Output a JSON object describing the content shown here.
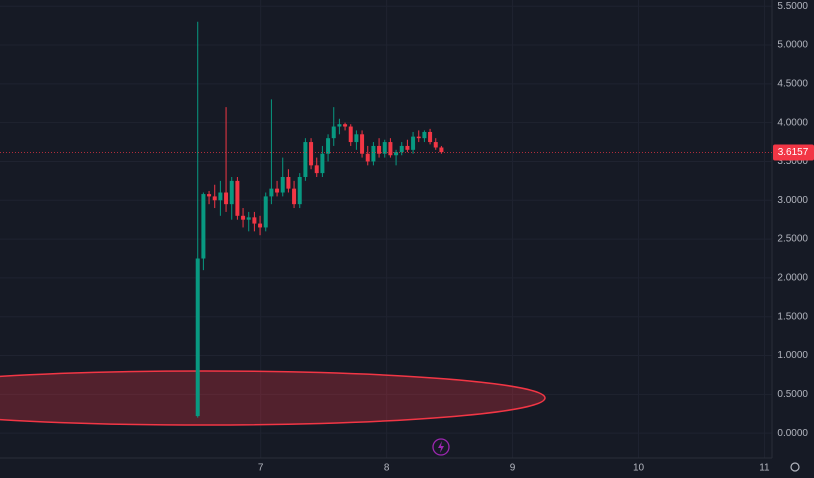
{
  "chart_data": {
    "type": "candlestick",
    "up_color": "#089981",
    "down_color": "#f23645",
    "grid": true,
    "xlim": [
      4.93,
      11.06
    ],
    "ylim": [
      -0.32,
      5.58
    ],
    "xticks": [
      7,
      8,
      9,
      10,
      11
    ],
    "yticks": [
      {
        "value": 0,
        "label": "0.0000"
      },
      {
        "value": 0.5,
        "label": "0.5000"
      },
      {
        "value": 1,
        "label": "1.0000"
      },
      {
        "value": 1.5,
        "label": "1.5000"
      },
      {
        "value": 2,
        "label": "2.0000"
      },
      {
        "value": 2.5,
        "label": "2.5000"
      },
      {
        "value": 3,
        "label": "3.0000"
      },
      {
        "value": 3.5,
        "label": "3.5000"
      },
      {
        "value": 4,
        "label": "4.0000"
      },
      {
        "value": 4.5,
        "label": "4.5000"
      },
      {
        "value": 5,
        "label": "5.0000"
      },
      {
        "value": 5.5,
        "label": "5.5000"
      }
    ],
    "last_price": 3.6157,
    "x": [
      6.5,
      6.545,
      6.59,
      6.635,
      6.68,
      6.725,
      6.77,
      6.815,
      6.86,
      6.905,
      6.95,
      6.995,
      7.04,
      7.085,
      7.13,
      7.175,
      7.22,
      7.265,
      7.31,
      7.355,
      7.4,
      7.445,
      7.49,
      7.535,
      7.58,
      7.625,
      7.67,
      7.715,
      7.76,
      7.805,
      7.85,
      7.895,
      7.94,
      7.985,
      8.03,
      8.075,
      8.12,
      8.165,
      8.21,
      8.255,
      8.3,
      8.345,
      8.39,
      8.435
    ],
    "open": [
      0.22,
      2.25,
      3.08,
      3.05,
      3.0,
      3.1,
      2.95,
      3.25,
      2.8,
      2.75,
      2.78,
      2.7,
      2.65,
      3.05,
      3.15,
      3.1,
      3.3,
      3.15,
      2.95,
      3.3,
      3.75,
      3.45,
      3.35,
      3.6,
      3.8,
      3.95,
      3.98,
      3.95,
      3.75,
      3.85,
      3.6,
      3.5,
      3.7,
      3.6,
      3.75,
      3.58,
      3.62,
      3.7,
      3.65,
      3.82,
      3.8,
      3.88,
      3.75,
      3.68
    ],
    "high": [
      5.3,
      3.1,
      3.12,
      3.2,
      3.25,
      4.2,
      3.3,
      3.3,
      2.9,
      2.85,
      2.85,
      2.8,
      3.1,
      4.3,
      3.25,
      3.55,
      3.4,
      3.25,
      3.35,
      3.8,
      3.8,
      3.55,
      3.7,
      3.85,
      4.2,
      4.05,
      4.0,
      3.98,
      3.9,
      3.9,
      3.7,
      3.75,
      3.8,
      3.78,
      3.8,
      3.65,
      3.75,
      3.78,
      3.88,
      3.9,
      3.9,
      3.92,
      3.8,
      3.7
    ],
    "low": [
      0.2,
      2.1,
      2.95,
      2.9,
      2.8,
      2.85,
      2.75,
      2.75,
      2.65,
      2.6,
      2.6,
      2.55,
      2.6,
      2.95,
      3.05,
      3.05,
      3.1,
      2.9,
      2.9,
      3.25,
      3.4,
      3.3,
      3.3,
      3.5,
      3.7,
      3.85,
      3.9,
      3.7,
      3.65,
      3.55,
      3.45,
      3.45,
      3.55,
      3.55,
      3.55,
      3.45,
      3.58,
      3.62,
      3.6,
      3.75,
      3.75,
      3.72,
      3.65,
      3.6
    ],
    "close": [
      2.25,
      3.08,
      3.05,
      3.0,
      3.1,
      2.95,
      3.25,
      2.8,
      2.75,
      2.78,
      2.7,
      2.65,
      3.05,
      3.15,
      3.1,
      3.3,
      3.15,
      2.95,
      3.3,
      3.75,
      3.45,
      3.35,
      3.6,
      3.8,
      3.95,
      3.98,
      3.95,
      3.75,
      3.85,
      3.6,
      3.5,
      3.7,
      3.6,
      3.75,
      3.58,
      3.62,
      3.7,
      3.65,
      3.82,
      3.8,
      3.88,
      3.75,
      3.68,
      3.62
    ]
  }
}
